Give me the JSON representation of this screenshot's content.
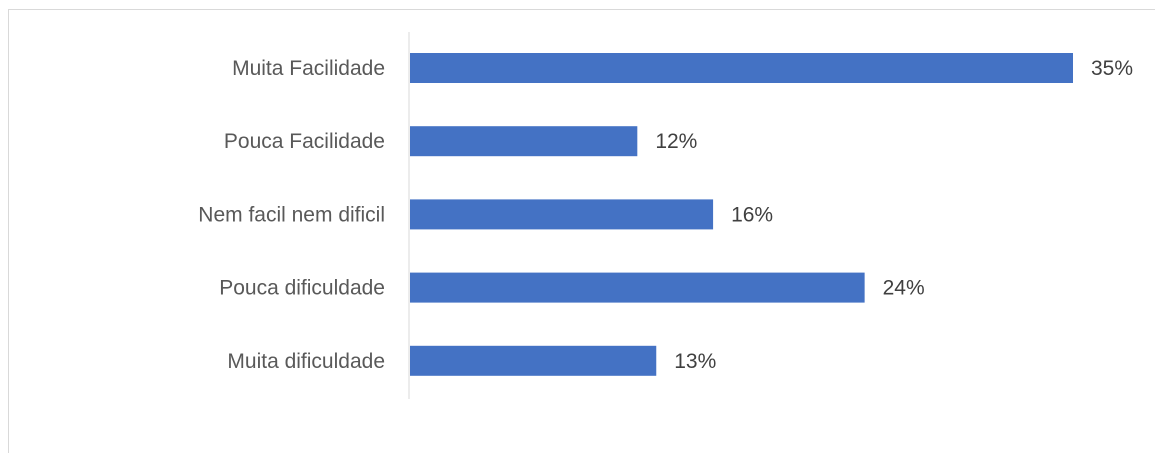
{
  "chart_data": {
    "type": "bar",
    "orientation": "horizontal",
    "categories": [
      "Muita Facilidade",
      "Pouca Facilidade",
      "Nem facil nem dificil",
      "Pouca dificuldade",
      "Muita dificuldade"
    ],
    "values": [
      35,
      12,
      16,
      24,
      13
    ],
    "value_labels": [
      "35%",
      "12%",
      "16%",
      "24%",
      "13%"
    ],
    "unit": "%",
    "xlim": [
      0,
      35
    ],
    "grid": false,
    "legend": "none",
    "colors": {
      "bar": "#4472c4",
      "axis": "#d9d9d9",
      "category_text": "#595959",
      "value_text": "#404040"
    }
  }
}
